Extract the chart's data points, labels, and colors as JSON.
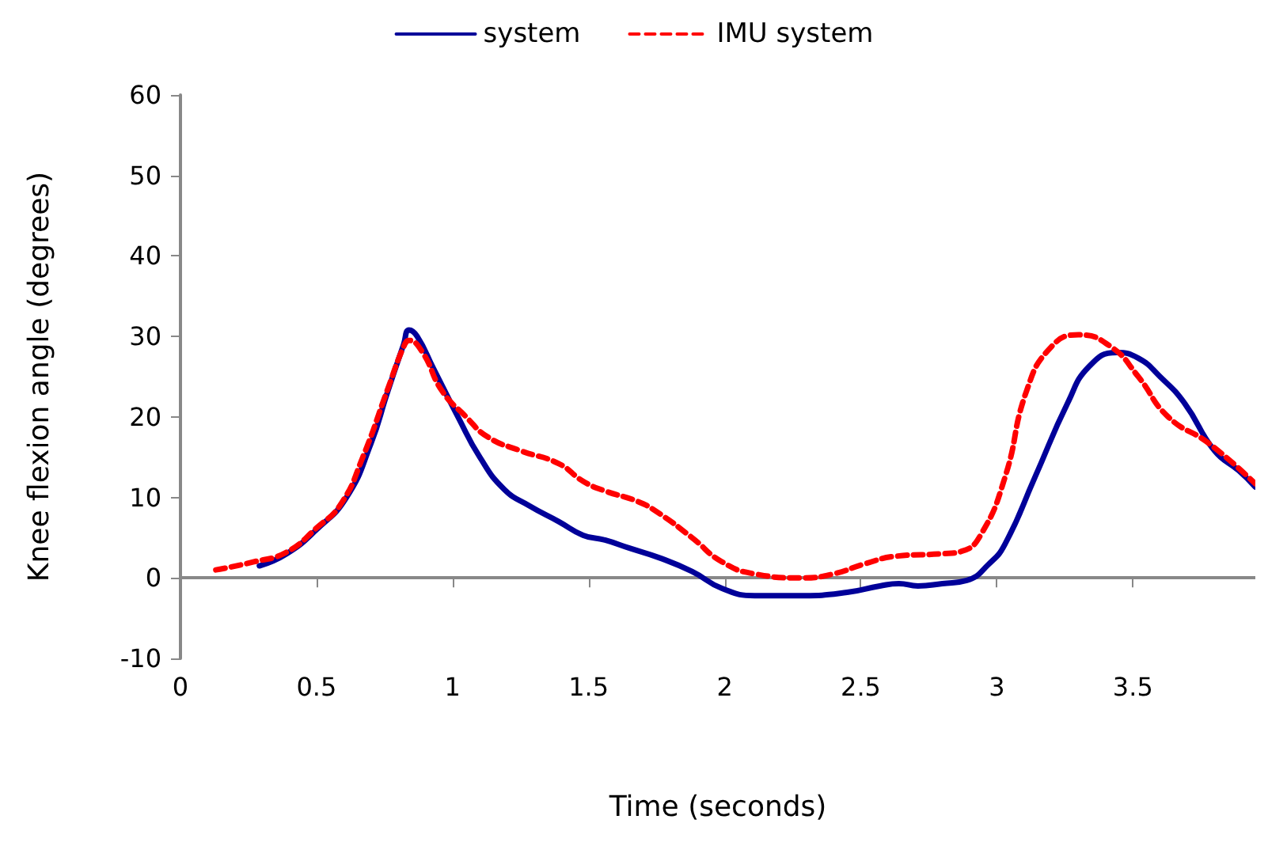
{
  "chart_data": {
    "type": "line",
    "xlabel": "Time (seconds)",
    "ylabel": "Knee flexion angle (degrees)",
    "xlim": [
      0,
      3.95
    ],
    "xticks": [
      0,
      0.5,
      1,
      1.5,
      2,
      2.5,
      3,
      3.5
    ],
    "ylim": [
      -10,
      60
    ],
    "yticks": [
      -10,
      0,
      10,
      20,
      30,
      40,
      50,
      60
    ],
    "legend": "top",
    "marker": "none",
    "series": [
      {
        "name": "system",
        "color": "#000099",
        "line_style": "solid",
        "x": [
          0.29,
          0.39,
          0.5,
          0.61,
          0.7,
          0.76,
          0.82,
          0.84,
          0.87,
          0.93,
          1.02,
          1.1,
          1.19,
          1.28,
          1.39,
          1.48,
          1.56,
          1.65,
          1.76,
          1.88,
          1.99,
          2.11,
          2.28,
          2.45,
          2.57,
          2.64,
          2.71,
          2.8,
          2.89,
          2.97,
          3.03,
          3.14,
          3.26,
          3.34,
          3.44,
          3.52,
          3.6,
          3.69,
          3.8,
          3.89,
          3.95
        ],
        "values": [
          1.5,
          3,
          6,
          10,
          16.7,
          23,
          29,
          30.8,
          30,
          26,
          20,
          15,
          11,
          9,
          7,
          5.3,
          4.7,
          3.7,
          2.5,
          0.8,
          -1.3,
          -2.2,
          -2.2,
          -1.8,
          -1,
          -0.7,
          -1,
          -0.7,
          -0.3,
          1.7,
          4.2,
          12.5,
          21.7,
          26.3,
          28,
          27.3,
          25,
          21.7,
          15.8,
          13.3,
          11.3
        ]
      },
      {
        "name": "IMU system",
        "color": "#ff0000",
        "line_style": "dashed",
        "x": [
          0.13,
          0.27,
          0.39,
          0.5,
          0.59,
          0.67,
          0.76,
          0.82,
          0.84,
          0.89,
          0.96,
          1.05,
          1.13,
          1.25,
          1.39,
          1.48,
          1.56,
          1.68,
          1.76,
          1.88,
          1.99,
          2.11,
          2.28,
          2.4,
          2.51,
          2.63,
          2.8,
          2.87,
          2.94,
          3.03,
          3.11,
          3.2,
          3.3,
          3.42,
          3.52,
          3.63,
          3.78,
          3.95
        ],
        "values": [
          1,
          2,
          3.2,
          6.2,
          9.2,
          15,
          23.3,
          28.7,
          29.5,
          28,
          23.3,
          20,
          17.5,
          15.8,
          14.2,
          12,
          10.8,
          9.5,
          8,
          5,
          2,
          0.5,
          0,
          0.5,
          1.7,
          2.7,
          3,
          3.3,
          5.3,
          12.5,
          23.3,
          28.7,
          30.2,
          28.7,
          25,
          20,
          16.7,
          11.7
        ]
      }
    ]
  }
}
